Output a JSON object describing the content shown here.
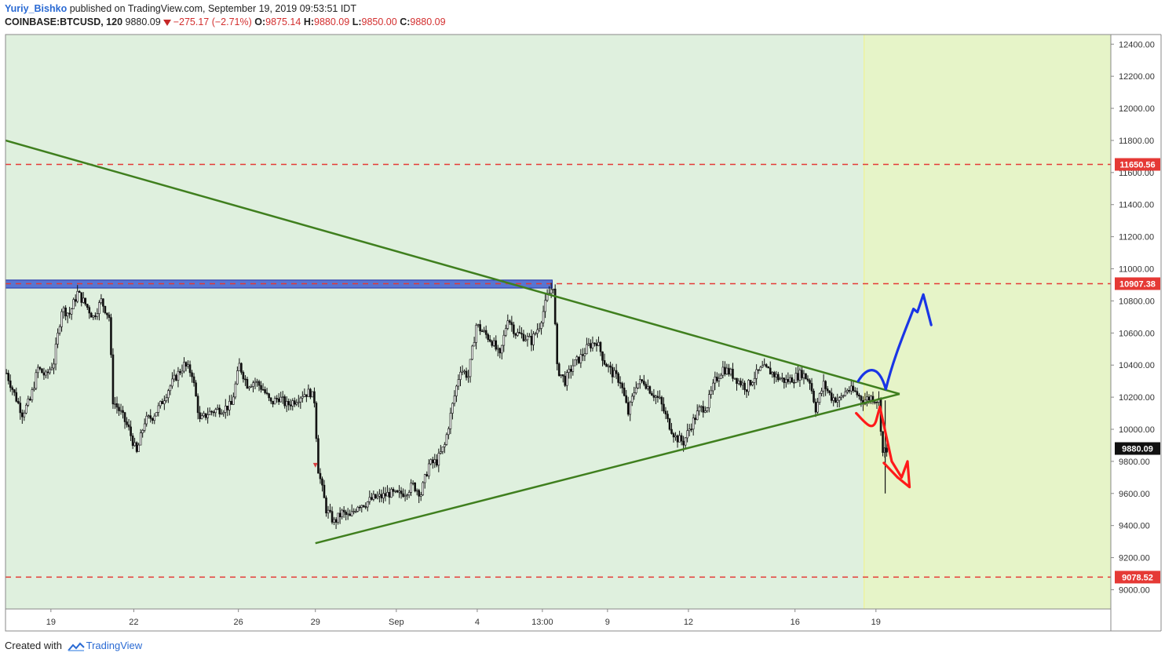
{
  "header": {
    "author": "Yuriy_Bishko",
    "published_text": "published on TradingView.com, September 19, 2019 09:53:51 IDT",
    "symbol": "COINBASE:BTCUSD, 120",
    "last_price": "9880.09",
    "change": "−275.17 (−2.71%)",
    "open_label": "O:",
    "open_value": "9875.14",
    "high_label": "H:",
    "high_value": "9880.09",
    "low_label": "L:",
    "low_value": "9850.00",
    "close_label": "C:",
    "close_value": "9880.09"
  },
  "footer": {
    "created_with": "Created with",
    "brand": "TradingView"
  },
  "colors": {
    "background_range": "#dff0de",
    "future_zone": "#e6f4c8",
    "resistance_line": "#e53935",
    "triangle_line": "#3f7f1e",
    "blue_zone": "#3f5fd0",
    "up_arrow": "#1a35e6",
    "down_arrow": "#ff1a1a",
    "candle": "#111111",
    "price_tag": "#111111",
    "level_tag": "#e53935"
  },
  "chart_data": {
    "type": "candlestick",
    "symbol": "COINBASE:BTCUSD",
    "interval": "120",
    "x_tick_labels": [
      "19",
      "22",
      "26",
      "29",
      "Sep",
      "4",
      "13:00",
      "9",
      "12",
      "16",
      "19"
    ],
    "y_tick_labels": [
      "9000.00",
      "9200.00",
      "9400.00",
      "9600.00",
      "9800.00",
      "10000.00",
      "10200.00",
      "10400.00",
      "10600.00",
      "10800.00",
      "11000.00",
      "11200.00",
      "11400.00",
      "11600.00",
      "11800.00",
      "12000.00",
      "12200.00",
      "12400.00"
    ],
    "y_ticks": [
      9000,
      9200,
      9400,
      9600,
      9800,
      10000,
      10200,
      10400,
      10600,
      10800,
      11000,
      11200,
      11400,
      11600,
      11800,
      12000,
      12200,
      12400
    ],
    "ylim": [
      8880,
      12460
    ],
    "x_index_range": [
      0,
      560
    ],
    "x_tick_index": [
      23,
      65,
      118,
      157,
      198,
      239,
      272,
      305,
      346,
      400,
      441
    ],
    "horizontal_levels": [
      {
        "label": "11650.56",
        "value": 11650.56
      },
      {
        "label": "10907.38",
        "value": 10907.38
      },
      {
        "label": "9078.52",
        "value": 9078.52
      }
    ],
    "current_price": {
      "label": "9880.09",
      "value": 9880.09
    },
    "resistance_zone": {
      "x_start": 0,
      "x_end": 277,
      "low": 10880,
      "high": 10930
    },
    "future_zone_start_index": 435,
    "descending_trendline": {
      "x1": 0,
      "y1": 11800,
      "x2": 453,
      "y2": 10220
    },
    "ascending_trendline": {
      "x1": 157,
      "y1": 9290,
      "x2": 453,
      "y2": 10220
    },
    "close_series": [
      {
        "x": 0,
        "y": 10350
      },
      {
        "x": 4,
        "y": 10220
      },
      {
        "x": 8,
        "y": 10100
      },
      {
        "x": 12,
        "y": 10180
      },
      {
        "x": 16,
        "y": 10380
      },
      {
        "x": 20,
        "y": 10330
      },
      {
        "x": 24,
        "y": 10420
      },
      {
        "x": 28,
        "y": 10750
      },
      {
        "x": 32,
        "y": 10720
      },
      {
        "x": 36,
        "y": 10850
      },
      {
        "x": 40,
        "y": 10780
      },
      {
        "x": 44,
        "y": 10700
      },
      {
        "x": 48,
        "y": 10800
      },
      {
        "x": 52,
        "y": 10700
      },
      {
        "x": 54,
        "y": 10180
      },
      {
        "x": 58,
        "y": 10100
      },
      {
        "x": 62,
        "y": 10000
      },
      {
        "x": 66,
        "y": 9850
      },
      {
        "x": 70,
        "y": 10050
      },
      {
        "x": 74,
        "y": 10080
      },
      {
        "x": 78,
        "y": 10150
      },
      {
        "x": 82,
        "y": 10250
      },
      {
        "x": 86,
        "y": 10330
      },
      {
        "x": 90,
        "y": 10400
      },
      {
        "x": 94,
        "y": 10350
      },
      {
        "x": 98,
        "y": 10050
      },
      {
        "x": 102,
        "y": 10100
      },
      {
        "x": 106,
        "y": 10120
      },
      {
        "x": 110,
        "y": 10130
      },
      {
        "x": 114,
        "y": 10150
      },
      {
        "x": 118,
        "y": 10400
      },
      {
        "x": 122,
        "y": 10280
      },
      {
        "x": 126,
        "y": 10300
      },
      {
        "x": 130,
        "y": 10250
      },
      {
        "x": 134,
        "y": 10160
      },
      {
        "x": 138,
        "y": 10200
      },
      {
        "x": 142,
        "y": 10150
      },
      {
        "x": 146,
        "y": 10180
      },
      {
        "x": 150,
        "y": 10220
      },
      {
        "x": 154,
        "y": 10230
      },
      {
        "x": 156,
        "y": 10180
      },
      {
        "x": 158,
        "y": 9750
      },
      {
        "x": 162,
        "y": 9500
      },
      {
        "x": 166,
        "y": 9420
      },
      {
        "x": 170,
        "y": 9480
      },
      {
        "x": 174,
        "y": 9450
      },
      {
        "x": 178,
        "y": 9530
      },
      {
        "x": 182,
        "y": 9540
      },
      {
        "x": 186,
        "y": 9570
      },
      {
        "x": 190,
        "y": 9580
      },
      {
        "x": 194,
        "y": 9600
      },
      {
        "x": 198,
        "y": 9590
      },
      {
        "x": 202,
        "y": 9610
      },
      {
        "x": 206,
        "y": 9650
      },
      {
        "x": 210,
        "y": 9600
      },
      {
        "x": 214,
        "y": 9780
      },
      {
        "x": 218,
        "y": 9800
      },
      {
        "x": 222,
        "y": 9900
      },
      {
        "x": 226,
        "y": 10150
      },
      {
        "x": 230,
        "y": 10380
      },
      {
        "x": 234,
        "y": 10330
      },
      {
        "x": 238,
        "y": 10650
      },
      {
        "x": 242,
        "y": 10600
      },
      {
        "x": 246,
        "y": 10550
      },
      {
        "x": 250,
        "y": 10450
      },
      {
        "x": 254,
        "y": 10700
      },
      {
        "x": 258,
        "y": 10600
      },
      {
        "x": 262,
        "y": 10580
      },
      {
        "x": 266,
        "y": 10550
      },
      {
        "x": 270,
        "y": 10650
      },
      {
        "x": 274,
        "y": 10820
      },
      {
        "x": 277,
        "y": 10900
      },
      {
        "x": 279,
        "y": 10380
      },
      {
        "x": 283,
        "y": 10300
      },
      {
        "x": 287,
        "y": 10400
      },
      {
        "x": 291,
        "y": 10450
      },
      {
        "x": 295,
        "y": 10520
      },
      {
        "x": 299,
        "y": 10550
      },
      {
        "x": 303,
        "y": 10420
      },
      {
        "x": 307,
        "y": 10350
      },
      {
        "x": 311,
        "y": 10300
      },
      {
        "x": 315,
        "y": 10100
      },
      {
        "x": 319,
        "y": 10280
      },
      {
        "x": 323,
        "y": 10300
      },
      {
        "x": 327,
        "y": 10230
      },
      {
        "x": 331,
        "y": 10180
      },
      {
        "x": 335,
        "y": 10050
      },
      {
        "x": 339,
        "y": 9950
      },
      {
        "x": 343,
        "y": 9920
      },
      {
        "x": 347,
        "y": 10030
      },
      {
        "x": 351,
        "y": 10120
      },
      {
        "x": 355,
        "y": 10150
      },
      {
        "x": 359,
        "y": 10300
      },
      {
        "x": 363,
        "y": 10380
      },
      {
        "x": 367,
        "y": 10350
      },
      {
        "x": 371,
        "y": 10300
      },
      {
        "x": 375,
        "y": 10260
      },
      {
        "x": 379,
        "y": 10330
      },
      {
        "x": 383,
        "y": 10380
      },
      {
        "x": 387,
        "y": 10360
      },
      {
        "x": 391,
        "y": 10320
      },
      {
        "x": 395,
        "y": 10300
      },
      {
        "x": 399,
        "y": 10320
      },
      {
        "x": 403,
        "y": 10350
      },
      {
        "x": 407,
        "y": 10300
      },
      {
        "x": 410,
        "y": 10130
      },
      {
        "x": 414,
        "y": 10280
      },
      {
        "x": 418,
        "y": 10200
      },
      {
        "x": 422,
        "y": 10180
      },
      {
        "x": 426,
        "y": 10250
      },
      {
        "x": 430,
        "y": 10230
      },
      {
        "x": 434,
        "y": 10180
      },
      {
        "x": 438,
        "y": 10200
      },
      {
        "x": 442,
        "y": 10180
      },
      {
        "x": 444,
        "y": 9850
      },
      {
        "x": 446,
        "y": 9880
      }
    ],
    "drawings": [
      {
        "type": "arrow_up",
        "color": "blue",
        "target_high": 10840
      },
      {
        "type": "arrow_down",
        "color": "red",
        "target_low": 9640
      }
    ],
    "grid": false,
    "legend": "none"
  }
}
